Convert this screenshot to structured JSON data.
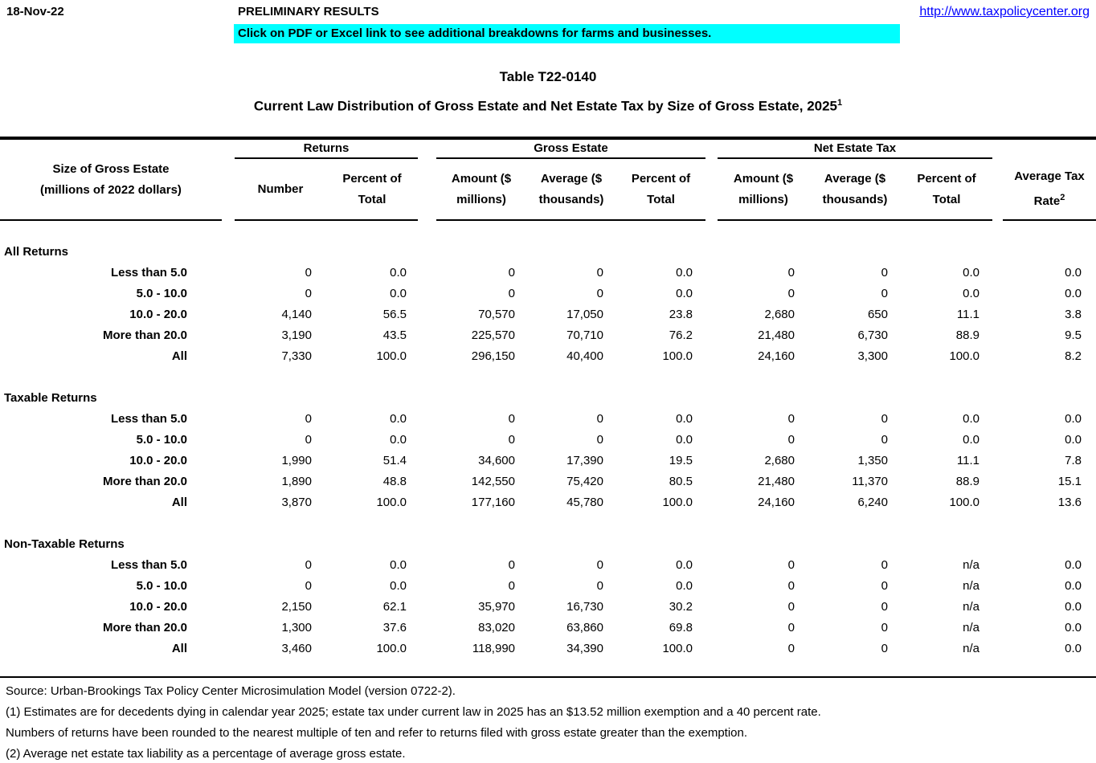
{
  "page": {
    "date": "18-Nov-22",
    "status": "PRELIMINARY RESULTS",
    "banner": "Click on PDF or Excel link to see additional breakdowns for farms and businesses.",
    "url": "http://www.taxpolicycenter.org",
    "banner_bg": "#00FFFF",
    "url_color": "#0000FF"
  },
  "title": {
    "table_id": "Table T22-0140",
    "heading": "Current Law Distribution of Gross Estate and Net Estate Tax by Size of Gross Estate, 2025",
    "heading_note": "1"
  },
  "table": {
    "stub_header_line1": "Size of Gross Estate",
    "stub_header_line2": "(millions of 2022 dollars)",
    "groups": {
      "returns": "Returns",
      "gross_estate": "Gross Estate",
      "net_estate_tax": "Net Estate Tax"
    },
    "columns": {
      "number": "Number",
      "percent_l1": "Percent of",
      "percent_l2": "Total",
      "amount_l1": "Amount ($",
      "amount_l2": "millions)",
      "average_l1": "Average ($",
      "average_l2": "thousands)",
      "rate_l1": "Average Tax",
      "rate_l2": "Rate",
      "rate_note": "2"
    },
    "sections": [
      {
        "label": "All Returns",
        "rows": [
          {
            "label": "Less than 5.0",
            "values": [
              "0",
              "0.0",
              "0",
              "0",
              "0.0",
              "0",
              "0",
              "0.0",
              "0.0"
            ]
          },
          {
            "label": "5.0 - 10.0",
            "values": [
              "0",
              "0.0",
              "0",
              "0",
              "0.0",
              "0",
              "0",
              "0.0",
              "0.0"
            ]
          },
          {
            "label": "10.0 - 20.0",
            "values": [
              "4,140",
              "56.5",
              "70,570",
              "17,050",
              "23.8",
              "2,680",
              "650",
              "11.1",
              "3.8"
            ]
          },
          {
            "label": "More than 20.0",
            "values": [
              "3,190",
              "43.5",
              "225,570",
              "70,710",
              "76.2",
              "21,480",
              "6,730",
              "88.9",
              "9.5"
            ]
          },
          {
            "label": "All",
            "values": [
              "7,330",
              "100.0",
              "296,150",
              "40,400",
              "100.0",
              "24,160",
              "3,300",
              "100.0",
              "8.2"
            ]
          }
        ]
      },
      {
        "label": "Taxable Returns",
        "rows": [
          {
            "label": "Less than 5.0",
            "values": [
              "0",
              "0.0",
              "0",
              "0",
              "0.0",
              "0",
              "0",
              "0.0",
              "0.0"
            ]
          },
          {
            "label": "5.0 - 10.0",
            "values": [
              "0",
              "0.0",
              "0",
              "0",
              "0.0",
              "0",
              "0",
              "0.0",
              "0.0"
            ]
          },
          {
            "label": "10.0 - 20.0",
            "values": [
              "1,990",
              "51.4",
              "34,600",
              "17,390",
              "19.5",
              "2,680",
              "1,350",
              "11.1",
              "7.8"
            ]
          },
          {
            "label": "More than 20.0",
            "values": [
              "1,890",
              "48.8",
              "142,550",
              "75,420",
              "80.5",
              "21,480",
              "11,370",
              "88.9",
              "15.1"
            ]
          },
          {
            "label": "All",
            "values": [
              "3,870",
              "100.0",
              "177,160",
              "45,780",
              "100.0",
              "24,160",
              "6,240",
              "100.0",
              "13.6"
            ]
          }
        ]
      },
      {
        "label": "Non-Taxable Returns",
        "rows": [
          {
            "label": "Less than 5.0",
            "values": [
              "0",
              "0.0",
              "0",
              "0",
              "0.0",
              "0",
              "0",
              "n/a",
              "0.0"
            ]
          },
          {
            "label": "5.0 - 10.0",
            "values": [
              "0",
              "0.0",
              "0",
              "0",
              "0.0",
              "0",
              "0",
              "n/a",
              "0.0"
            ]
          },
          {
            "label": "10.0 - 20.0",
            "values": [
              "2,150",
              "62.1",
              "35,970",
              "16,730",
              "30.2",
              "0",
              "0",
              "n/a",
              "0.0"
            ]
          },
          {
            "label": "More than 20.0",
            "values": [
              "1,300",
              "37.6",
              "83,020",
              "63,860",
              "69.8",
              "0",
              "0",
              "n/a",
              "0.0"
            ]
          },
          {
            "label": "All",
            "values": [
              "3,460",
              "100.0",
              "118,990",
              "34,390",
              "100.0",
              "0",
              "0",
              "n/a",
              "0.0"
            ]
          }
        ]
      }
    ]
  },
  "footnotes": {
    "source": "Source: Urban-Brookings Tax Policy Center Microsimulation Model (version 0722-2).",
    "note1a": "(1) Estimates are for decedents dying in calendar year 2025; estate tax under current law in 2025 has an $13.52 million exemption and a 40 percent rate.",
    "note1b": "Numbers of returns have been rounded to the nearest multiple of ten and refer to returns filed with gross estate greater than the exemption.",
    "note2": "(2) Average net estate tax liability as a percentage of average gross estate."
  }
}
